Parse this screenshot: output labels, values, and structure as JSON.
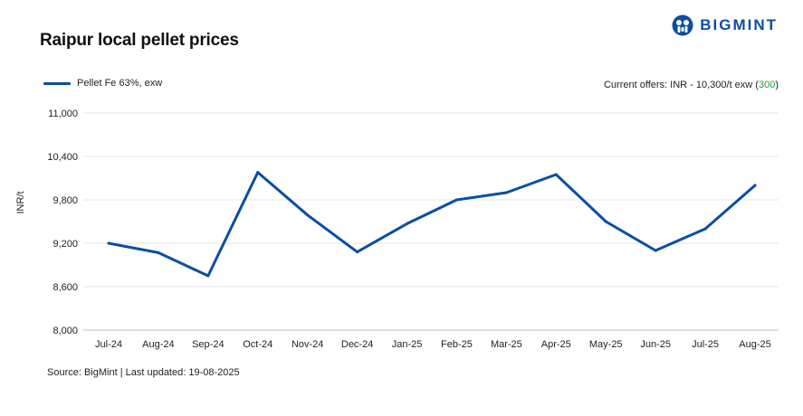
{
  "header": {
    "title": "Raipur local pellet prices",
    "brand": "BIGMINT"
  },
  "offers": {
    "prefix": "Current offers: INR - 10,300/t exw (",
    "change": "300",
    "suffix": ")",
    "change_color": "#1e9e3a"
  },
  "footer": {
    "source": "Source: BigMint | Last updated: 19-08-2025"
  },
  "chart_data": {
    "type": "line",
    "title": "Raipur local pellet prices",
    "xlabel": "",
    "ylabel": "INR/t",
    "categories": [
      "Jul-24",
      "Aug-24",
      "Sep-24",
      "Oct-24",
      "Nov-24",
      "Dec-24",
      "Jan-25",
      "Feb-25",
      "Mar-25",
      "Apr-25",
      "May-25",
      "Jun-25",
      "Jul-25",
      "Aug-25"
    ],
    "series": [
      {
        "name": "Pellet Fe 63%, exw",
        "color": "#0b4ea2",
        "values": [
          9200,
          9070,
          8750,
          10180,
          9590,
          9080,
          9470,
          9800,
          9900,
          10150,
          9500,
          9100,
          9400,
          10000
        ]
      }
    ],
    "ylim": [
      8000,
      11000
    ],
    "yticks": [
      8000,
      8600,
      9200,
      9800,
      10400,
      11000
    ],
    "ytick_labels": [
      "8,000",
      "8,600",
      "9,200",
      "9,800",
      "10,400",
      "11,000"
    ],
    "grid": true,
    "legend_position": "top-left"
  }
}
